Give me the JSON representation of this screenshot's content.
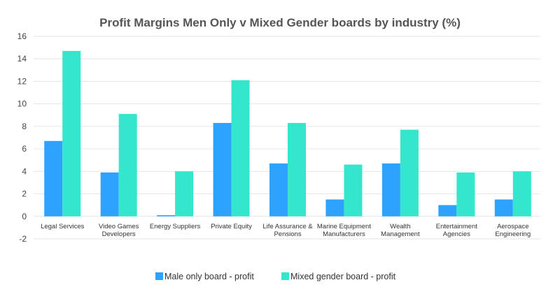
{
  "chart_data": {
    "type": "bar",
    "title": "Profit Margins Men Only v Mixed Gender boards by industry (%)",
    "xlabel": "",
    "ylabel": "",
    "ylim": [
      -2,
      16
    ],
    "yticks": [
      -2,
      0,
      2,
      4,
      6,
      8,
      10,
      12,
      14,
      16
    ],
    "grid": true,
    "legend_position": "bottom",
    "categories": [
      [
        "Legal Services"
      ],
      [
        "Video Games",
        "Developers"
      ],
      [
        "Energy Suppliers"
      ],
      [
        "Private Equity"
      ],
      [
        "Life Assurance &",
        "Pensions"
      ],
      [
        "Marine Equipment",
        "Manufacturers"
      ],
      [
        "Wealth",
        "Management"
      ],
      [
        "Entertainment",
        "Agencies"
      ],
      [
        "Aerospace",
        "Engineering"
      ]
    ],
    "series": [
      {
        "name": "Male only board - profit",
        "color": "#2ea2ff",
        "values": [
          6.7,
          3.9,
          0.1,
          8.3,
          4.7,
          1.5,
          4.7,
          1.0,
          1.5
        ]
      },
      {
        "name": "Mixed gender board - profit",
        "color": "#33e6cc",
        "values": [
          14.7,
          9.1,
          4.0,
          12.1,
          8.3,
          4.6,
          7.7,
          3.9,
          4.0
        ]
      }
    ]
  }
}
